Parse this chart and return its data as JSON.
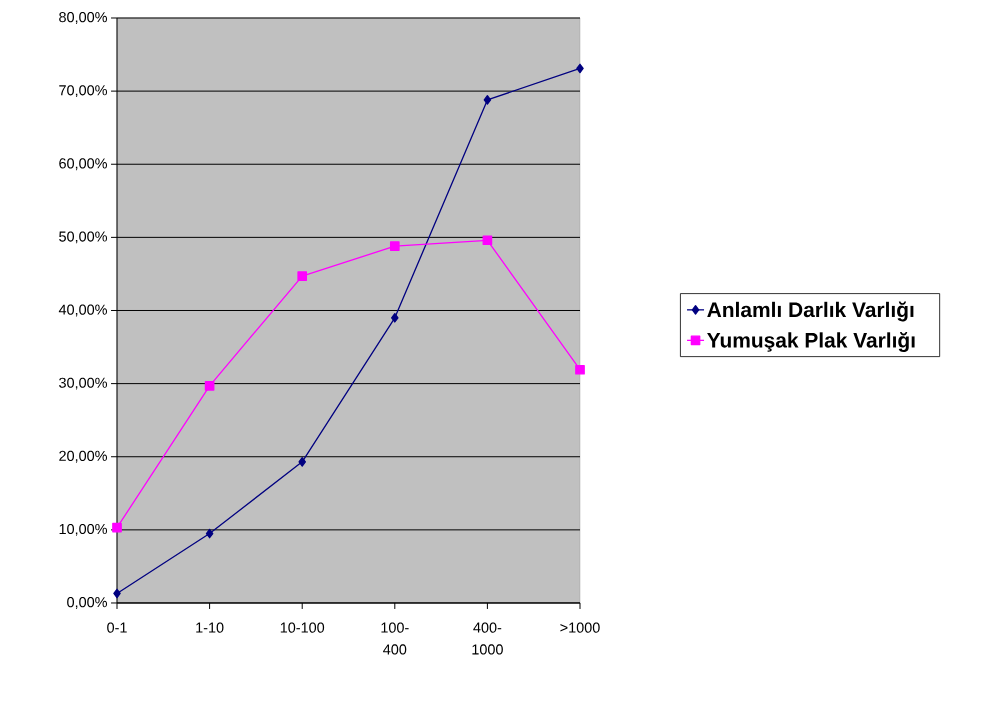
{
  "chart_data": {
    "type": "line",
    "categories": [
      "0-1",
      "1-10",
      "10-100",
      "100-400",
      "400-1000",
      ">1000"
    ],
    "series": [
      {
        "name": "Anlamlı Darlık Varlığı",
        "color": "#000080",
        "marker": "diamond",
        "values": [
          1.3,
          9.5,
          19.3,
          39.0,
          68.8,
          73.1
        ]
      },
      {
        "name": "Yumuşak Plak Varlığı",
        "color": "#ff00ff",
        "marker": "square",
        "values": [
          10.3,
          29.7,
          44.7,
          48.8,
          49.6,
          31.9
        ]
      }
    ],
    "ylim": [
      0,
      80
    ],
    "yticks": [
      {
        "value": 0,
        "label": "0,00%"
      },
      {
        "value": 10,
        "label": "10,00%"
      },
      {
        "value": 20,
        "label": "20,00%"
      },
      {
        "value": 30,
        "label": "30,00%"
      },
      {
        "value": 40,
        "label": "40,00%"
      },
      {
        "value": 50,
        "label": "50,00%"
      },
      {
        "value": 60,
        "label": "60,00%"
      },
      {
        "value": 70,
        "label": "70,00%"
      },
      {
        "value": 80,
        "label": "80,00%"
      }
    ],
    "grid": "y",
    "legend": "right",
    "line_style": "solid"
  }
}
